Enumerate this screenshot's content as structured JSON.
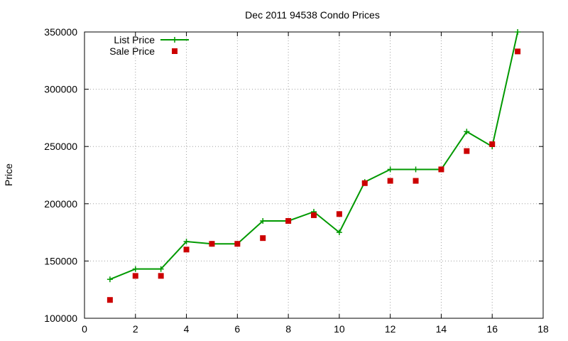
{
  "chart_data": {
    "type": "line",
    "title": "Dec 2011 94538 Condo Prices",
    "xlabel": "",
    "ylabel": "Price",
    "xlim": [
      0,
      18
    ],
    "ylim": [
      100000,
      350000
    ],
    "xticks": [
      0,
      2,
      4,
      6,
      8,
      10,
      12,
      14,
      16,
      18
    ],
    "yticks": [
      100000,
      150000,
      200000,
      250000,
      300000,
      350000
    ],
    "grid": true,
    "legend_position": "top-left",
    "series": [
      {
        "name": "List Price",
        "style": "line-plus",
        "color": "#009900",
        "x": [
          1,
          2,
          3,
          4,
          5,
          6,
          7,
          8,
          9,
          10,
          11,
          12,
          13,
          14,
          15,
          16,
          17
        ],
        "y": [
          134000,
          143000,
          143000,
          167000,
          165000,
          165000,
          185000,
          185000,
          193000,
          175000,
          219000,
          230000,
          230000,
          230000,
          263000,
          250000,
          350000
        ]
      },
      {
        "name": "Sale Price",
        "style": "square",
        "color": "#cc0000",
        "x": [
          1,
          2,
          3,
          4,
          5,
          6,
          7,
          8,
          9,
          10,
          11,
          12,
          13,
          14,
          15,
          16,
          17
        ],
        "y": [
          116000,
          137000,
          137000,
          160000,
          165000,
          165000,
          170000,
          185000,
          190000,
          191000,
          218000,
          220000,
          220000,
          230000,
          246000,
          252000,
          333000
        ]
      }
    ]
  }
}
